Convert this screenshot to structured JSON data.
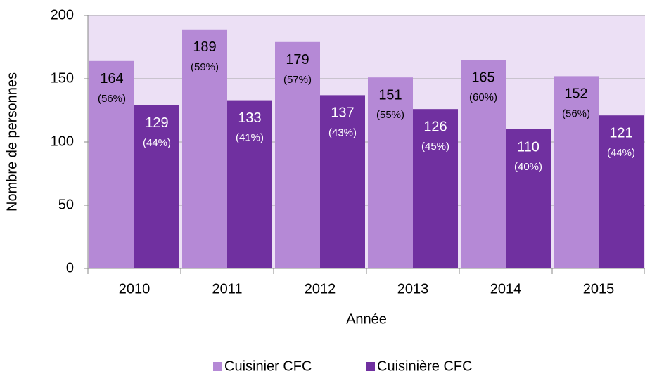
{
  "chart_data": {
    "type": "bar",
    "x_label": "Année",
    "y_label": "Nombre de personnes",
    "categories": [
      "2010",
      "2011",
      "2012",
      "2013",
      "2014",
      "2015"
    ],
    "series": [
      {
        "name": "Cuisinier CFC",
        "color": "#b589d6",
        "label_color": "#000000",
        "values": [
          164,
          189,
          179,
          151,
          165,
          152
        ],
        "share_labels": [
          "(56%)",
          "(59%)",
          "(57%)",
          "(55%)",
          "(60%)",
          "(56%)"
        ]
      },
      {
        "name": "Cuisinière CFC",
        "color": "#7030a0",
        "label_color": "#ffffff",
        "values": [
          129,
          133,
          137,
          126,
          110,
          121
        ],
        "share_labels": [
          "(44%)",
          "(41%)",
          "(43%)",
          "(45%)",
          "(40%)",
          "(44%)"
        ]
      }
    ],
    "ylim": [
      0,
      200
    ],
    "yticks": [
      0,
      50,
      100,
      150,
      200
    ],
    "grid": true,
    "plot_background": "#ece0f5",
    "legend": "bottom"
  }
}
